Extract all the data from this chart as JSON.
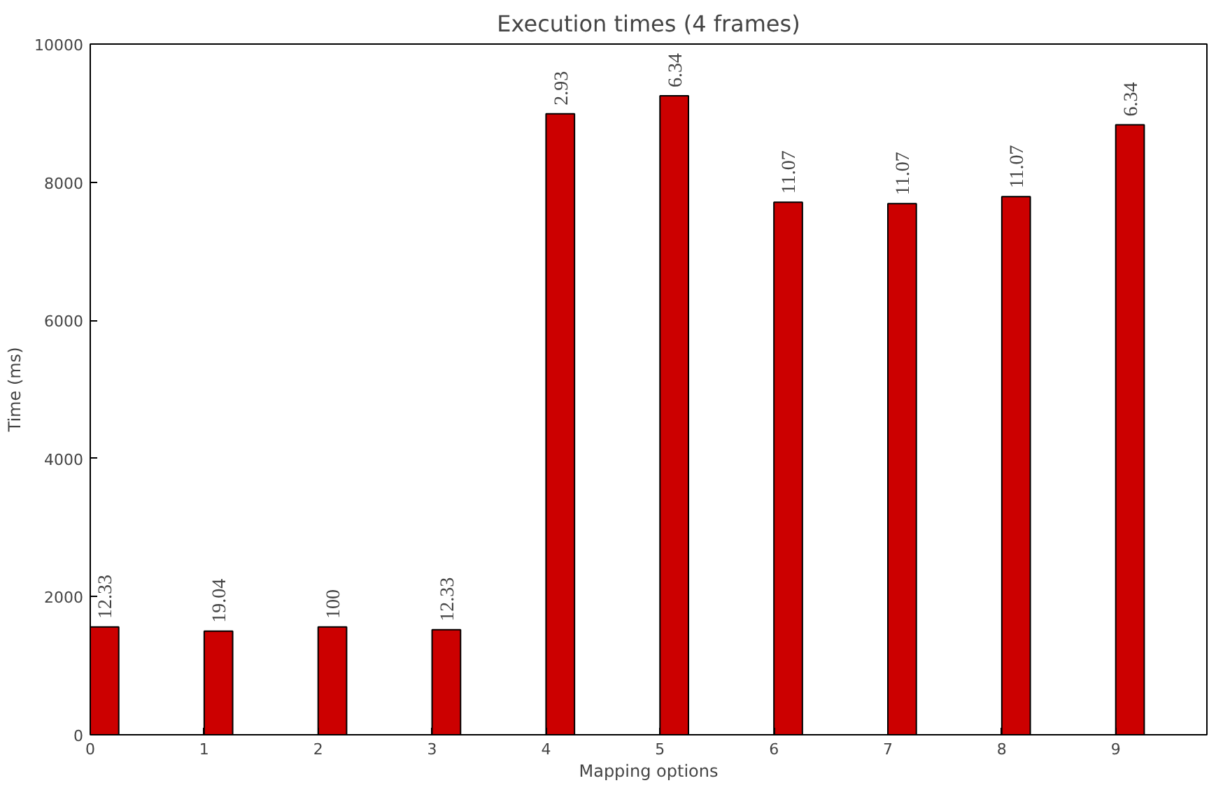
{
  "chart_data": {
    "type": "bar",
    "title": "Execution times (4 frames)",
    "xlabel": "Mapping options",
    "ylabel": "Time (ms)",
    "categories": [
      "0",
      "1",
      "2",
      "3",
      "4",
      "5",
      "6",
      "7",
      "8",
      "9"
    ],
    "values": [
      1560,
      1500,
      1560,
      1520,
      8990,
      9250,
      7710,
      7690,
      7790,
      8830
    ],
    "annotations": [
      {
        "text": "12.33",
        "x": "0",
        "y": 1560
      },
      {
        "text": "19.04",
        "x": "1",
        "y": 1500
      },
      {
        "text": "100",
        "x": "2",
        "y": 1560
      },
      {
        "text": "12.33",
        "x": "3",
        "y": 1520
      },
      {
        "text": "2.93",
        "x": "4",
        "y": 8990
      },
      {
        "text": "6.34",
        "x": "5",
        "y": 9250
      },
      {
        "text": "11.07",
        "x": "6",
        "y": 7710
      },
      {
        "text": "11.07",
        "x": "7",
        "y": 7690
      },
      {
        "text": "11.07",
        "x": "8",
        "y": 7790
      },
      {
        "text": "6.34",
        "x": "9",
        "y": 8830
      }
    ],
    "color": "#cc0000",
    "ylim": [
      0,
      10000
    ],
    "yticks": [
      0,
      2000,
      4000,
      6000,
      8000,
      10000
    ],
    "grid": false
  }
}
